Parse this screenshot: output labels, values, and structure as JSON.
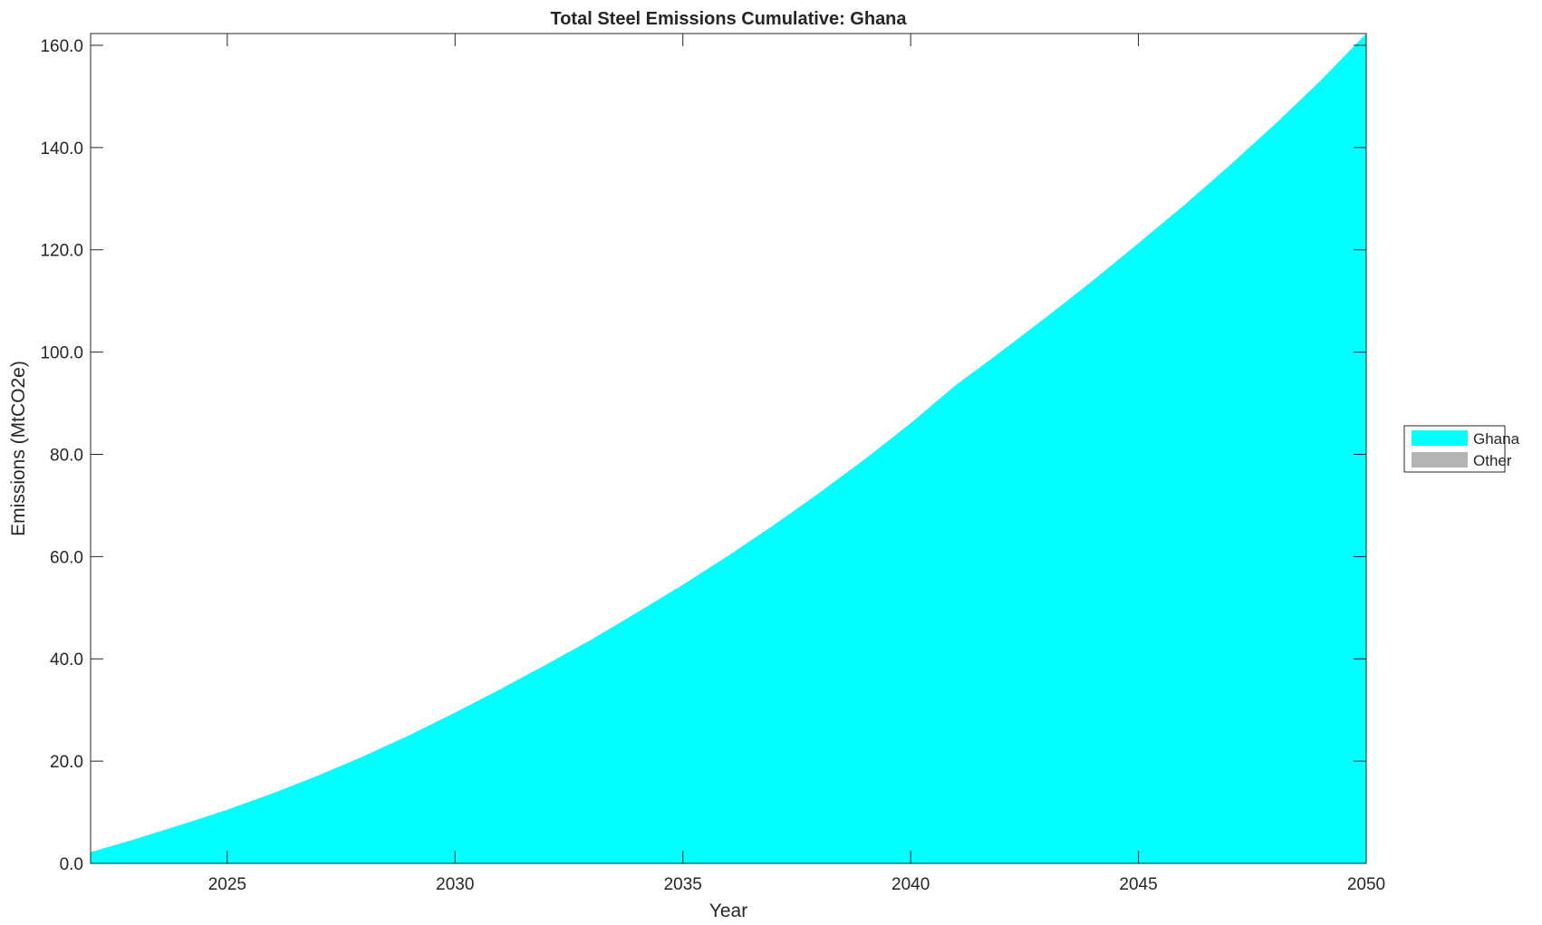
{
  "chart_data": {
    "type": "area",
    "title": "Total Steel Emissions Cumulative: Ghana",
    "xlabel": "Year",
    "ylabel": "Emissions (MtCO2e)",
    "xlim": [
      2022,
      2050
    ],
    "ylim": [
      0,
      162.3
    ],
    "xticks": [
      2025,
      2030,
      2035,
      2040,
      2045,
      2050
    ],
    "yticks": [
      0,
      20,
      40,
      60,
      80,
      100,
      120,
      140,
      160
    ],
    "ytick_labels": [
      "0.0",
      "20.0",
      "40.0",
      "60.0",
      "80.0",
      "100.0",
      "120.0",
      "140.0",
      "160.0"
    ],
    "grid": false,
    "legend_position": "right",
    "x": [
      2022,
      2023,
      2024,
      2025,
      2026,
      2027,
      2028,
      2029,
      2030,
      2031,
      2032,
      2033,
      2034,
      2035,
      2036,
      2037,
      2038,
      2039,
      2040,
      2041,
      2042,
      2043,
      2044,
      2045,
      2046,
      2047,
      2048,
      2049,
      2050
    ],
    "series": [
      {
        "name": "Ghana",
        "color": "#00FFFF",
        "values": [
          2.2,
          4.8,
          7.6,
          10.5,
          13.7,
          17.2,
          21.0,
          25.1,
          29.5,
          34.1,
          38.9,
          43.8,
          49.1,
          54.5,
          60.2,
          66.2,
          72.5,
          79.1,
          86.1,
          93.6,
          100.2,
          107.0,
          114.0,
          121.3,
          128.7,
          136.5,
          144.6,
          153.1,
          162.3
        ]
      },
      {
        "name": "Other",
        "color": "#B3B3B3",
        "values": [
          0,
          0,
          0,
          0,
          0,
          0,
          0,
          0,
          0,
          0,
          0,
          0,
          0,
          0,
          0,
          0,
          0,
          0,
          0,
          0,
          0,
          0,
          0,
          0,
          0,
          0,
          0,
          0,
          0
        ]
      }
    ]
  }
}
